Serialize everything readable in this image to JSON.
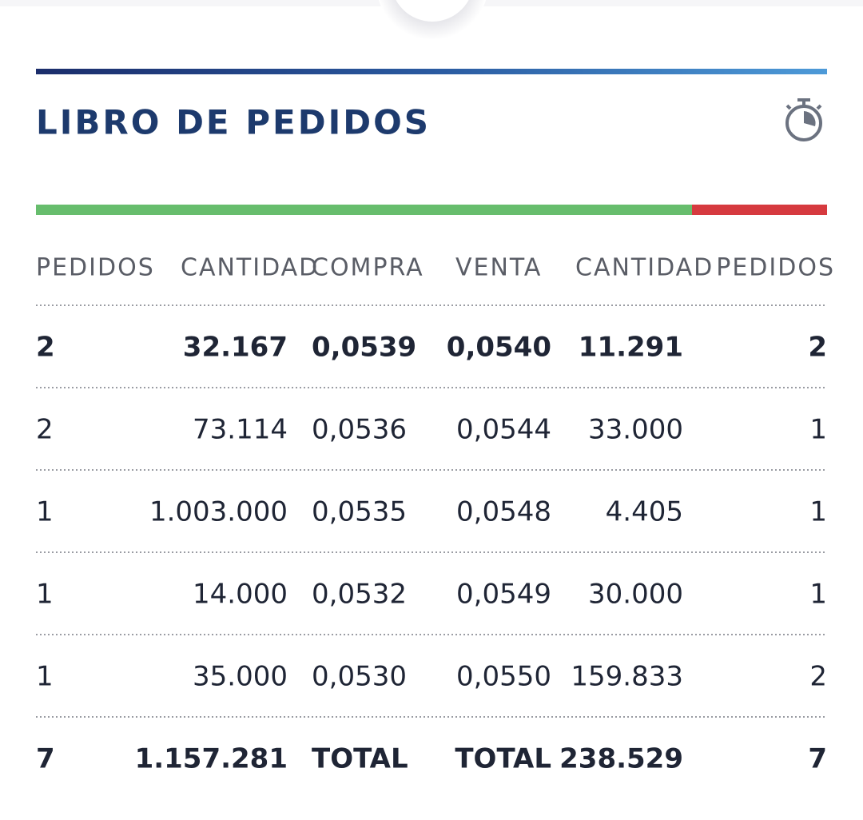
{
  "header": {
    "title": "LIBRO DE PEDIDOS"
  },
  "table": {
    "columns": [
      "PEDIDOS",
      "CANTIDAD",
      "COMPRA",
      "VENTA",
      "CANTIDAD",
      "PEDIDOS"
    ],
    "rows": [
      [
        "2",
        "32.167",
        "0,0539",
        "0,0540",
        "11.291",
        "2"
      ],
      [
        "2",
        "73.114",
        "0,0536",
        "0,0544",
        "33.000",
        "1"
      ],
      [
        "1",
        "1.003.000",
        "0,0535",
        "0,0548",
        "4.405",
        "1"
      ],
      [
        "1",
        "14.000",
        "0,0532",
        "0,0549",
        "30.000",
        "1"
      ],
      [
        "1",
        "35.000",
        "0,0530",
        "0,0550",
        "159.833",
        "2"
      ],
      [
        "7",
        "1.157.281",
        "TOTAL",
        "TOTAL",
        "238.529",
        "7"
      ]
    ]
  }
}
